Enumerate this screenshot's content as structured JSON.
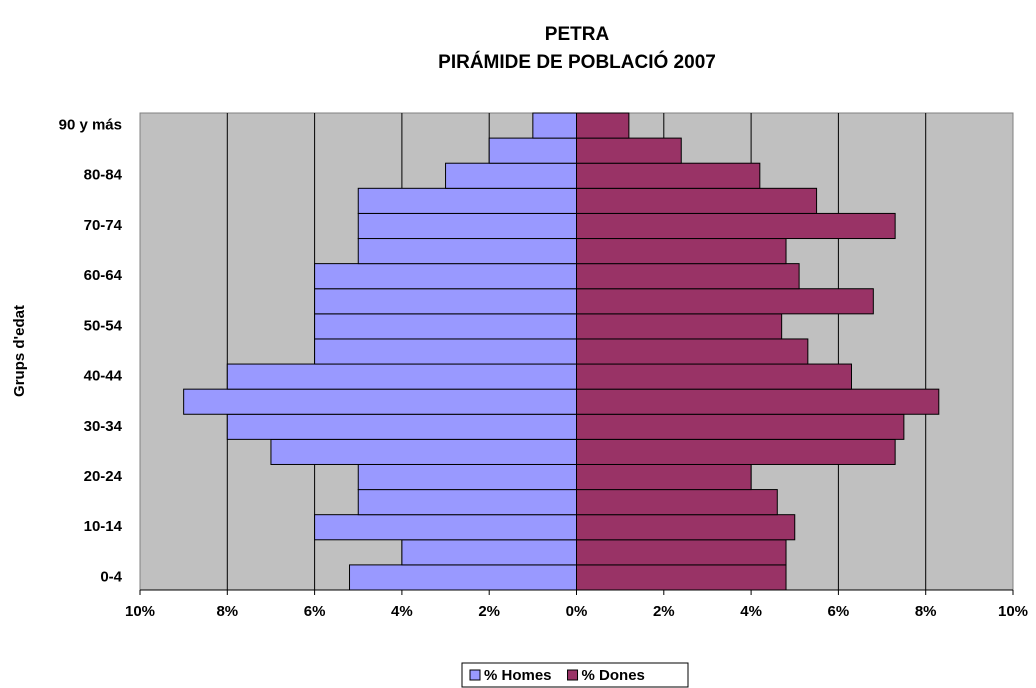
{
  "chart_data": {
    "type": "pyramid",
    "title": "PETRA",
    "subtitle": "PIRÁMIDE DE POBLACIÓ 2007",
    "y_label": "Grups d'edat",
    "categories": [
      "0-4",
      null,
      "10-14",
      null,
      "20-24",
      null,
      "30-34",
      null,
      "40-44",
      null,
      "50-54",
      null,
      "60-64",
      null,
      "70-74",
      null,
      "80-84",
      null,
      "90 y más"
    ],
    "series": [
      {
        "name": "% Homes",
        "color": "#9999ff",
        "values": [
          -5.2,
          -4.0,
          -6.0,
          -5.0,
          -5.0,
          -7.0,
          -8.0,
          -9.0,
          -8.0,
          -6.0,
          -6.0,
          -6.0,
          -6.0,
          -5.0,
          -5.0,
          -5.0,
          -3.0,
          -2.0,
          -1.0
        ]
      },
      {
        "name": "% Dones",
        "color": "#993366",
        "values": [
          4.8,
          4.8,
          5.0,
          4.6,
          4.0,
          7.3,
          7.5,
          8.3,
          6.3,
          5.3,
          4.7,
          6.8,
          5.1,
          4.8,
          7.3,
          5.5,
          4.2,
          2.4,
          1.2
        ]
      }
    ],
    "xlim": [
      -10,
      10
    ],
    "xticks": [
      {
        "value": -10,
        "label": "10%"
      },
      {
        "value": -8,
        "label": "8%"
      },
      {
        "value": -6,
        "label": "6%"
      },
      {
        "value": -4,
        "label": "4%"
      },
      {
        "value": -2,
        "label": "2%"
      },
      {
        "value": 0,
        "label": "0%"
      },
      {
        "value": 2,
        "label": "2%"
      },
      {
        "value": 4,
        "label": "4%"
      },
      {
        "value": 6,
        "label": "6%"
      },
      {
        "value": 8,
        "label": "8%"
      },
      {
        "value": 10,
        "label": "10%"
      }
    ],
    "grid": true,
    "legend": "bottom"
  }
}
